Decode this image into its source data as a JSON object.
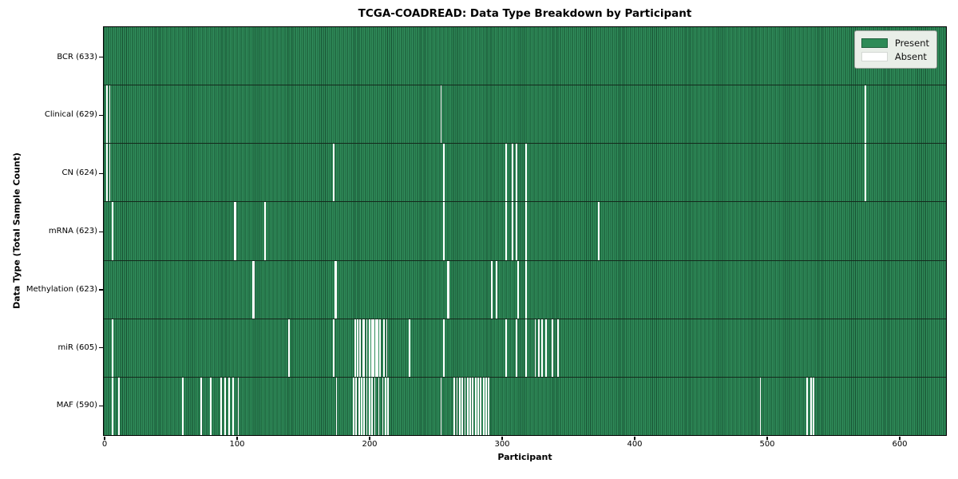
{
  "chart_data": {
    "type": "heatmap",
    "title": "TCGA-COADREAD: Data Type Breakdown by Participant",
    "xlabel": "Participant",
    "ylabel": "Data Type (Total Sample Count)",
    "legend": [
      "Present",
      "Absent"
    ],
    "legend_position": "upper right",
    "grid": false,
    "x_ticks": [
      0,
      100,
      200,
      300,
      400,
      500,
      600
    ],
    "x_range": [
      0,
      633
    ],
    "n_participants": 633,
    "colors": {
      "present": "#2e8b57",
      "present_edge": "#175032",
      "absent": "#ffffff",
      "legend_bg": "#e9eee8"
    },
    "rows": [
      {
        "name": "bcr",
        "label": "BCR (633)",
        "present_count": 633,
        "absent_participants": []
      },
      {
        "name": "clinical",
        "label": "Clinical (629)",
        "present_count": 629,
        "absent_participants": [
          2,
          4,
          254,
          574
        ]
      },
      {
        "name": "cn",
        "label": "CN (624)",
        "present_count": 624,
        "absent_participants": [
          2,
          4,
          173,
          256,
          303,
          308,
          311,
          318,
          574
        ]
      },
      {
        "name": "mrna",
        "label": "mRNA (623)",
        "present_count": 623,
        "absent_participants": [
          6,
          98,
          99,
          121,
          256,
          303,
          308,
          311,
          318,
          373
        ]
      },
      {
        "name": "methylation",
        "label": "Methylation (623)",
        "present_count": 623,
        "absent_participants": [
          112,
          113,
          174,
          175,
          259,
          260,
          292,
          296,
          312,
          318
        ]
      },
      {
        "name": "mir",
        "label": "miR (605)",
        "present_count": 605,
        "absent_participants": [
          6,
          139,
          173,
          189,
          191,
          193,
          195,
          196,
          198,
          200,
          202,
          203,
          205,
          206,
          208,
          211,
          213,
          230,
          256,
          303,
          311,
          318,
          325,
          328,
          330,
          333,
          338,
          342
        ]
      },
      {
        "name": "maf",
        "label": "MAF (590)",
        "present_count": 590,
        "absent_participants": [
          6,
          11,
          59,
          73,
          80,
          88,
          91,
          94,
          97,
          101,
          175,
          188,
          190,
          192,
          194,
          196,
          198,
          200,
          202,
          204,
          207,
          210,
          212,
          214,
          254,
          264,
          266,
          268,
          270,
          272,
          274,
          276,
          278,
          280,
          282,
          284,
          286,
          288,
          290,
          495,
          530,
          533,
          535
        ]
      }
    ]
  }
}
